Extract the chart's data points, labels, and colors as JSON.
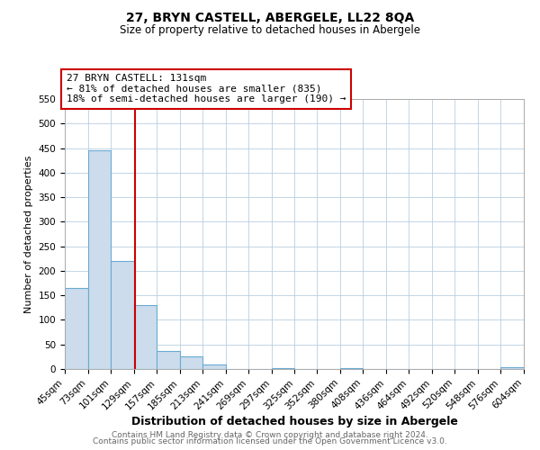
{
  "title": "27, BRYN CASTELL, ABERGELE, LL22 8QA",
  "subtitle": "Size of property relative to detached houses in Abergele",
  "xlabel": "Distribution of detached houses by size in Abergele",
  "ylabel": "Number of detached properties",
  "bin_edges": [
    45,
    73,
    101,
    129,
    157,
    185,
    213,
    241,
    269,
    297,
    325,
    352,
    380,
    408,
    436,
    464,
    492,
    520,
    548,
    576,
    604
  ],
  "bin_labels": [
    "45sqm",
    "73sqm",
    "101sqm",
    "129sqm",
    "157sqm",
    "185sqm",
    "213sqm",
    "241sqm",
    "269sqm",
    "297sqm",
    "325sqm",
    "352sqm",
    "380sqm",
    "408sqm",
    "436sqm",
    "464sqm",
    "492sqm",
    "520sqm",
    "548sqm",
    "576sqm",
    "604sqm"
  ],
  "counts": [
    165,
    445,
    220,
    130,
    37,
    25,
    10,
    0,
    0,
    2,
    0,
    0,
    2,
    0,
    0,
    0,
    0,
    0,
    0,
    4
  ],
  "bar_color": "#ccdcec",
  "bar_edge_color": "#6aaad4",
  "property_line_x": 131,
  "property_line_color": "#cc0000",
  "annotation_text_line1": "27 BRYN CASTELL: 131sqm",
  "annotation_text_line2": "← 81% of detached houses are smaller (835)",
  "annotation_text_line3": "18% of semi-detached houses are larger (190) →",
  "annotation_box_color": "#ffffff",
  "annotation_box_edge_color": "#cc0000",
  "ylim": [
    0,
    550
  ],
  "yticks": [
    0,
    50,
    100,
    150,
    200,
    250,
    300,
    350,
    400,
    450,
    500,
    550
  ],
  "grid_color": "#b8cfe0",
  "background_color": "#ffffff",
  "footer_line1": "Contains HM Land Registry data © Crown copyright and database right 2024.",
  "footer_line2": "Contains public sector information licensed under the Open Government Licence v3.0.",
  "title_fontsize": 10,
  "subtitle_fontsize": 8.5,
  "xlabel_fontsize": 9,
  "ylabel_fontsize": 8,
  "tick_fontsize": 7.5,
  "annotation_fontsize": 8,
  "footer_fontsize": 6.5
}
